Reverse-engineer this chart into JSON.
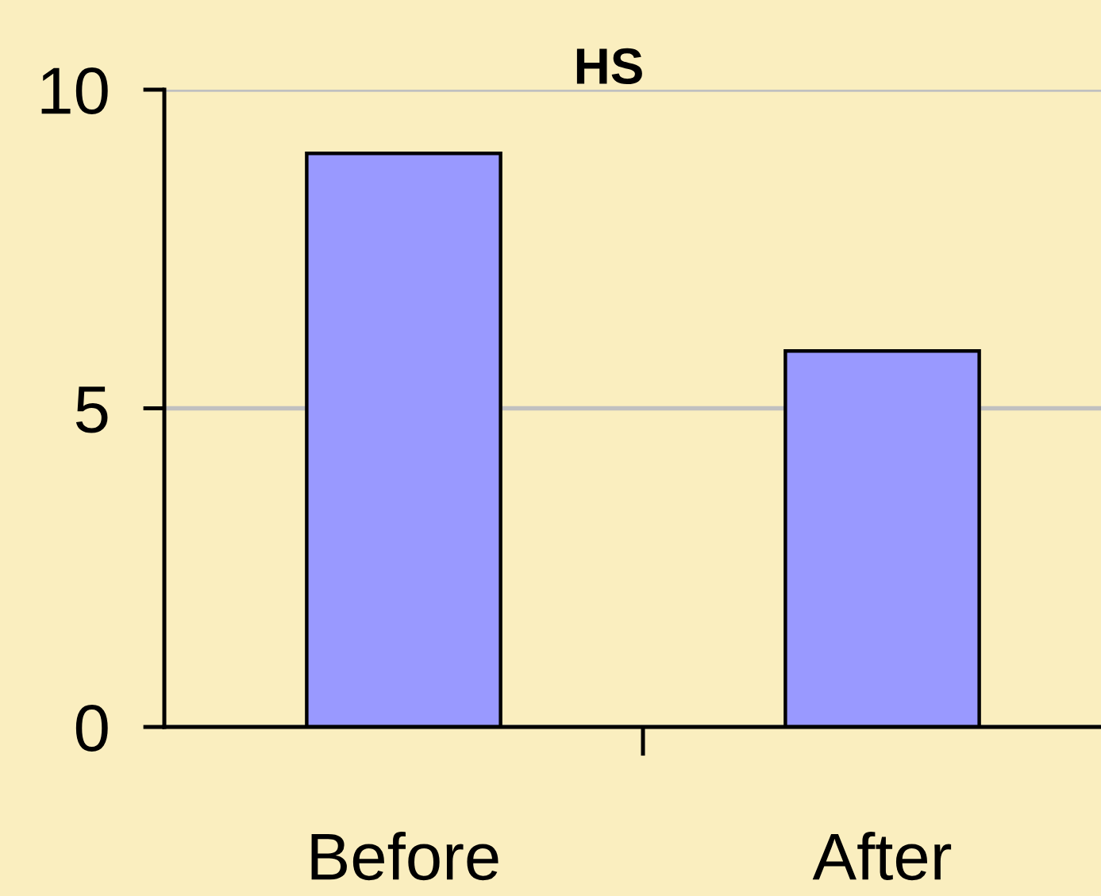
{
  "chart_data": {
    "type": "bar",
    "title": "HS",
    "categories": [
      "Before",
      "After"
    ],
    "values": [
      9,
      5.9
    ],
    "color": "#9999ff",
    "ylim": [
      0,
      10
    ],
    "yticks": [
      0,
      5,
      10
    ],
    "grid": "y"
  }
}
